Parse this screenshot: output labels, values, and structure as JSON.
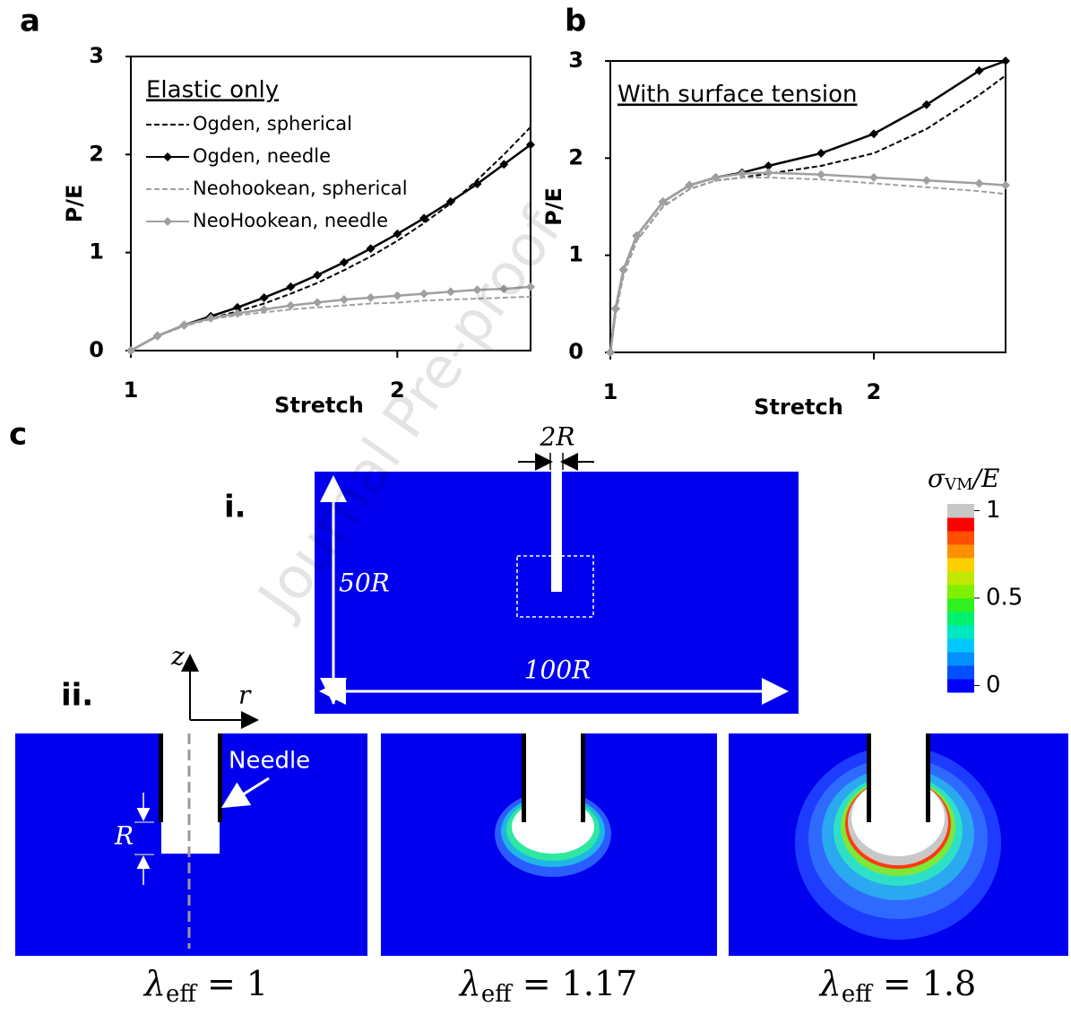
{
  "chart_data": [
    {
      "type": "line",
      "panel": "a",
      "annotation": "Elastic only",
      "xlabel": "Stretch",
      "ylabel": "P/E",
      "x": [
        1,
        1.1,
        1.2,
        1.3,
        1.4,
        1.5,
        1.6,
        1.7,
        1.8,
        1.9,
        2.0,
        2.1,
        2.2,
        2.3,
        2.4,
        2.5
      ],
      "xlim": [
        1,
        2.5
      ],
      "xticks": [
        1,
        2
      ],
      "ylim": [
        0,
        3
      ],
      "yticks": [
        0,
        1,
        2,
        3
      ],
      "legend": "upper left",
      "series": [
        {
          "name": "Ogden, spherical",
          "color": "#000000",
          "style": "dashed",
          "marker": "none",
          "values": [
            0,
            0.15,
            0.25,
            0.33,
            0.4,
            0.48,
            0.58,
            0.69,
            0.82,
            0.96,
            1.12,
            1.3,
            1.5,
            1.74,
            2.0,
            2.28
          ]
        },
        {
          "name": "Ogden, needle",
          "color": "#000000",
          "style": "solid",
          "marker": "diamond",
          "values": [
            0,
            0.15,
            0.26,
            0.35,
            0.44,
            0.54,
            0.65,
            0.77,
            0.9,
            1.04,
            1.19,
            1.35,
            1.52,
            1.7,
            1.9,
            2.1
          ]
        },
        {
          "name": "Neohookean, spherical",
          "color": "#a0a0a0",
          "style": "dashed",
          "marker": "none",
          "values": [
            0,
            0.15,
            0.25,
            0.32,
            0.36,
            0.39,
            0.42,
            0.44,
            0.46,
            0.48,
            0.49,
            0.51,
            0.52,
            0.53,
            0.54,
            0.55
          ]
        },
        {
          "name": "NeoHookean, needle",
          "color": "#a0a0a0",
          "style": "solid",
          "marker": "diamond",
          "values": [
            0,
            0.15,
            0.26,
            0.33,
            0.38,
            0.42,
            0.46,
            0.49,
            0.52,
            0.54,
            0.56,
            0.58,
            0.6,
            0.62,
            0.63,
            0.65
          ]
        }
      ]
    },
    {
      "type": "line",
      "panel": "b",
      "annotation": "With surface tension",
      "xlabel": "Stretch",
      "ylabel": "P/E",
      "x": [
        1,
        1.02,
        1.05,
        1.1,
        1.2,
        1.3,
        1.4,
        1.5,
        1.6,
        1.8,
        2.0,
        2.2,
        2.4,
        2.5
      ],
      "xlim": [
        1,
        2.5
      ],
      "xticks": [
        1,
        2
      ],
      "ylim": [
        0,
        3
      ],
      "yticks": [
        0,
        1,
        2,
        3
      ],
      "series": [
        {
          "color": "#000000",
          "style": "dashed",
          "marker": "none",
          "values": [
            0,
            0.4,
            0.8,
            1.15,
            1.5,
            1.68,
            1.77,
            1.8,
            1.84,
            1.92,
            2.05,
            2.3,
            2.65,
            2.85
          ]
        },
        {
          "color": "#000000",
          "style": "solid",
          "marker": "diamond",
          "values": [
            0,
            0.45,
            0.85,
            1.2,
            1.55,
            1.72,
            1.8,
            1.85,
            1.92,
            2.05,
            2.25,
            2.55,
            2.9,
            3.0
          ]
        },
        {
          "color": "#a0a0a0",
          "style": "dashed",
          "marker": "none",
          "values": [
            0,
            0.4,
            0.8,
            1.15,
            1.5,
            1.68,
            1.77,
            1.8,
            1.8,
            1.78,
            1.74,
            1.7,
            1.66,
            1.63
          ]
        },
        {
          "color": "#a0a0a0",
          "style": "solid",
          "marker": "diamond",
          "values": [
            0,
            0.45,
            0.85,
            1.2,
            1.55,
            1.72,
            1.8,
            1.84,
            1.85,
            1.83,
            1.8,
            1.77,
            1.74,
            1.72
          ]
        }
      ]
    }
  ],
  "panel_c": {
    "letter": "c",
    "sub_i": "i.",
    "sub_ii": "ii.",
    "width_label": "2R",
    "height_label": "50R",
    "length_label": "100R",
    "axis_z": "z",
    "axis_r": "r",
    "needle": "Needle",
    "radius": "R",
    "colorbar": {
      "symbol": "σ",
      "subscript": "VM",
      "rest": "/E",
      "ticks": [
        0,
        0.5,
        1
      ]
    },
    "captions": [
      {
        "symbol": "λ",
        "subscript": "eff",
        "rest": " = 1"
      },
      {
        "symbol": "λ",
        "subscript": "eff",
        "rest": " = 1.17"
      },
      {
        "symbol": "λ",
        "subscript": "eff",
        "rest": " = 1.8"
      }
    ]
  },
  "watermark": "Journal Pre-proof"
}
